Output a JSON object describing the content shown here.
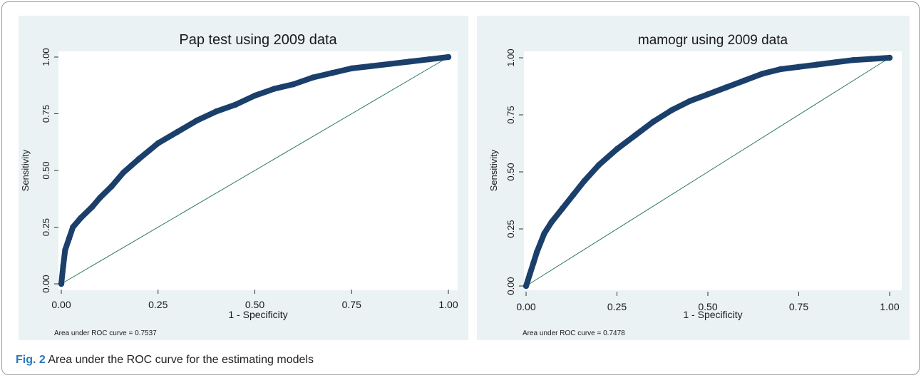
{
  "colors": {
    "panel_bg": "#eaf2f3",
    "plot_bg": "#ffffff",
    "curve": "#1b3f6b",
    "reference_line": "#2e7d5b",
    "caption_label": "#2a76b8"
  },
  "caption": {
    "label": "Fig. 2",
    "text": "Area under the ROC curve for the estimating models"
  },
  "chart_data": [
    {
      "type": "line",
      "title": "Pap test using 2009 data",
      "xlabel": "1 - Specificity",
      "ylabel": "Sensitivity",
      "xlim": [
        0,
        1
      ],
      "ylim": [
        0,
        1
      ],
      "xticks": [
        "0.00",
        "0.25",
        "0.50",
        "0.75",
        "1.00"
      ],
      "yticks": [
        "0.00",
        "0.25",
        "0.50",
        "0.75",
        "1.00"
      ],
      "grid": false,
      "note": "Area under ROC curve = 0.7537",
      "series": [
        {
          "x": [
            0,
            0.005,
            0.01,
            0.02,
            0.03,
            0.05,
            0.08,
            0.1,
            0.13,
            0.16,
            0.2,
            0.25,
            0.3,
            0.35,
            0.4,
            0.45,
            0.5,
            0.55,
            0.6,
            0.65,
            0.7,
            0.75,
            0.8,
            0.85,
            0.9,
            0.95,
            1
          ],
          "y": [
            0,
            0.08,
            0.15,
            0.2,
            0.25,
            0.29,
            0.34,
            0.38,
            0.43,
            0.49,
            0.55,
            0.62,
            0.67,
            0.72,
            0.76,
            0.79,
            0.83,
            0.86,
            0.88,
            0.91,
            0.93,
            0.95,
            0.96,
            0.97,
            0.98,
            0.99,
            1
          ]
        },
        {
          "x": [
            0,
            1
          ],
          "y": [
            0,
            1
          ]
        }
      ]
    },
    {
      "type": "line",
      "title": "mamogr using 2009 data",
      "xlabel": "1 - Specificity",
      "ylabel": "Sensitivity",
      "xlim": [
        0,
        1
      ],
      "ylim": [
        0,
        1
      ],
      "xticks": [
        "0.00",
        "0.25",
        "0.50",
        "0.75",
        "1.00"
      ],
      "yticks": [
        "0.00",
        "0.25",
        "0.50",
        "0.75",
        "1.00"
      ],
      "grid": false,
      "note": "Area under ROC curve = 0.7478",
      "series": [
        {
          "x": [
            0,
            0.01,
            0.02,
            0.03,
            0.05,
            0.07,
            0.1,
            0.13,
            0.16,
            0.2,
            0.25,
            0.3,
            0.35,
            0.4,
            0.45,
            0.5,
            0.55,
            0.6,
            0.65,
            0.7,
            0.75,
            0.8,
            0.85,
            0.9,
            0.95,
            1
          ],
          "y": [
            0,
            0.05,
            0.1,
            0.15,
            0.23,
            0.28,
            0.34,
            0.4,
            0.46,
            0.53,
            0.6,
            0.66,
            0.72,
            0.77,
            0.81,
            0.84,
            0.87,
            0.9,
            0.93,
            0.95,
            0.96,
            0.97,
            0.98,
            0.99,
            0.995,
            1
          ]
        },
        {
          "x": [
            0,
            1
          ],
          "y": [
            0,
            1
          ]
        }
      ]
    }
  ]
}
